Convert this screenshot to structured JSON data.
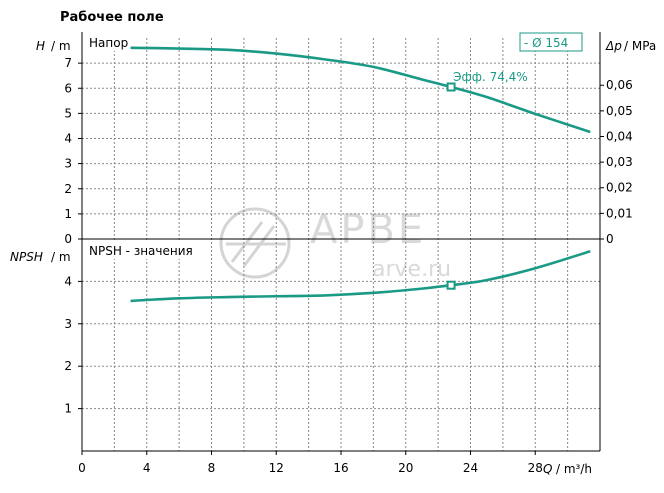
{
  "title": "Рабочее поле",
  "watermark": {
    "brand": "АРВЕ",
    "site": "arve.ru"
  },
  "colors": {
    "curve": "#1a9a86",
    "grid": "#888888",
    "axis": "#000000",
    "watermark": "#d4d4d4"
  },
  "chart_data": [
    {
      "id": "head",
      "type": "line",
      "panel_label": "Напор",
      "y_symbol": "H",
      "y_unit": "/ m",
      "ylim": [
        0,
        8
      ],
      "yticks": [
        "0",
        "1",
        "2",
        "3",
        "4",
        "5",
        "6",
        "7"
      ],
      "right_axis": {
        "symbol": "Δp",
        "unit": "/ MPa",
        "ticks": [
          "0",
          "0,01",
          "0,02",
          "0,03",
          "0,04",
          "0,05",
          "0,06"
        ]
      },
      "legend": "- Ø 154",
      "legend_position": "top-right",
      "x": [
        3.0,
        6,
        9,
        12,
        15,
        18,
        21,
        22.8,
        25,
        28,
        31.4
      ],
      "y": [
        7.61,
        7.58,
        7.53,
        7.38,
        7.15,
        6.85,
        6.35,
        6.05,
        5.65,
        4.98,
        4.26
      ],
      "marker": {
        "x": 22.8,
        "y": 6.05,
        "label": "Эфф.  74,4%"
      }
    },
    {
      "id": "npsh",
      "type": "line",
      "panel_label": "NPSH - значения",
      "y_symbol": "NPSH",
      "y_unit": "/ m",
      "ylim": [
        0,
        5
      ],
      "yticks": [
        "0",
        "1",
        "2",
        "3",
        "4"
      ],
      "xlabel_symbol": "Q",
      "xlabel_unit": "/ m³/h",
      "xlim": [
        0,
        32
      ],
      "xticks": [
        "0",
        "4",
        "8",
        "12",
        "16",
        "20",
        "24",
        "28"
      ],
      "x": [
        3.0,
        6,
        9,
        12,
        15,
        18,
        21,
        22.8,
        25,
        28,
        31.4
      ],
      "y": [
        3.54,
        3.6,
        3.63,
        3.65,
        3.67,
        3.73,
        3.83,
        3.91,
        4.03,
        4.31,
        4.71
      ],
      "marker": {
        "x": 22.8,
        "y": 3.91
      }
    }
  ]
}
